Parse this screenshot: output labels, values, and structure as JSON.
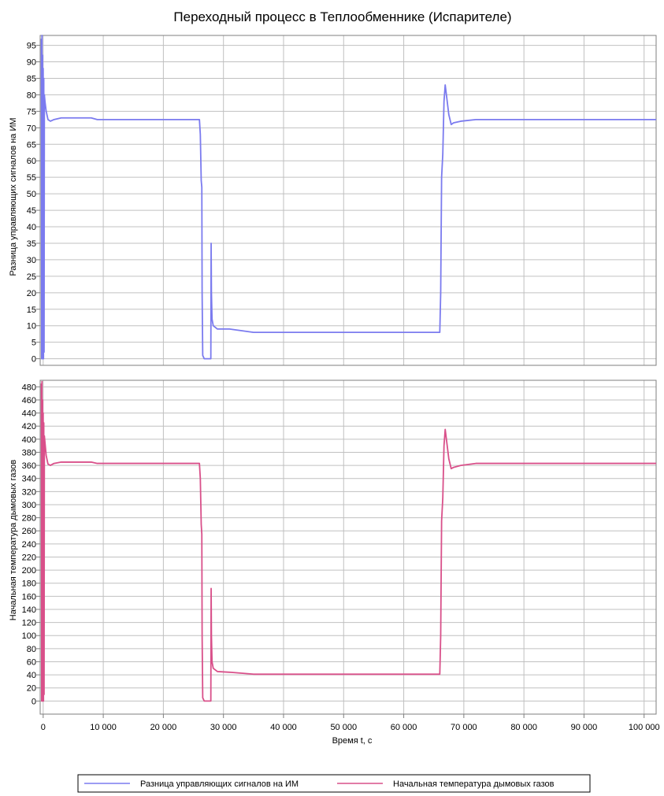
{
  "chart_data": {
    "type": "line",
    "title": "Переходный процесс в Теплообменнике (Испарителе)",
    "xlabel": "Время t, с",
    "xlim": [
      -500,
      102000
    ],
    "x_ticks": [
      0,
      10000,
      20000,
      30000,
      40000,
      50000,
      60000,
      70000,
      80000,
      90000,
      100000
    ],
    "x_tick_labels": [
      "0",
      "10 000",
      "20 000",
      "30 000",
      "40 000",
      "50 000",
      "60 000",
      "70 000",
      "80 000",
      "90 000",
      "100 000"
    ],
    "grid": true,
    "legend_position": "bottom",
    "panels": [
      {
        "ylabel": "Разница управляющих сигналов на ИМ",
        "ylim": [
          -2,
          98
        ],
        "y_ticks": [
          0,
          5,
          10,
          15,
          20,
          25,
          30,
          35,
          40,
          45,
          50,
          55,
          60,
          65,
          70,
          75,
          80,
          85,
          90,
          95
        ],
        "series": [
          {
            "name": "Разница управляющих сигналов на ИМ",
            "color": "#7b7bef",
            "points": [
              [
                -300,
                97
              ],
              [
                -250,
                0
              ],
              [
                -200,
                98
              ],
              [
                -150,
                0
              ],
              [
                -100,
                92
              ],
              [
                -50,
                0
              ],
              [
                0,
                88
              ],
              [
                50,
                0
              ],
              [
                100,
                85
              ],
              [
                150,
                2
              ],
              [
                200,
                80
              ],
              [
                300,
                78
              ],
              [
                500,
                75
              ],
              [
                800,
                72.5
              ],
              [
                1200,
                72
              ],
              [
                1800,
                72.5
              ],
              [
                3000,
                73
              ],
              [
                8000,
                73
              ],
              [
                9000,
                72.5
              ],
              [
                26000,
                72.5
              ],
              [
                26150,
                68
              ],
              [
                26300,
                54
              ],
              [
                26400,
                52
              ],
              [
                26450,
                20
              ],
              [
                26550,
                1
              ],
              [
                26800,
                0
              ],
              [
                27900,
                0
              ],
              [
                27950,
                35
              ],
              [
                28000,
                20
              ],
              [
                28100,
                12
              ],
              [
                28300,
                10
              ],
              [
                29000,
                9
              ],
              [
                31000,
                9
              ],
              [
                35000,
                8
              ],
              [
                66000,
                8
              ],
              [
                66150,
                20
              ],
              [
                66300,
                55
              ],
              [
                66500,
                62
              ],
              [
                66700,
                78
              ],
              [
                66900,
                83
              ],
              [
                67100,
                80
              ],
              [
                67500,
                74
              ],
              [
                67900,
                71
              ],
              [
                68300,
                71.5
              ],
              [
                69500,
                72
              ],
              [
                72000,
                72.5
              ],
              [
                102000,
                72.5
              ]
            ]
          }
        ]
      },
      {
        "ylabel": "Начальная температура дымовых газов",
        "ylim": [
          -20,
          490
        ],
        "y_ticks": [
          0,
          20,
          40,
          60,
          80,
          100,
          120,
          140,
          160,
          180,
          200,
          220,
          240,
          260,
          280,
          300,
          320,
          340,
          360,
          380,
          400,
          420,
          440,
          460,
          480
        ],
        "series": [
          {
            "name": "Начальная температура дымовых газов",
            "color": "#d9508a",
            "points": [
              [
                -300,
                485
              ],
              [
                -250,
                0
              ],
              [
                -200,
                488
              ],
              [
                -150,
                0
              ],
              [
                -100,
                460
              ],
              [
                -50,
                0
              ],
              [
                0,
                440
              ],
              [
                50,
                0
              ],
              [
                100,
                425
              ],
              [
                150,
                10
              ],
              [
                200,
                405
              ],
              [
                300,
                395
              ],
              [
                500,
                375
              ],
              [
                800,
                362
              ],
              [
                1200,
                360
              ],
              [
                1800,
                363
              ],
              [
                3000,
                365
              ],
              [
                8000,
                365
              ],
              [
                9000,
                363
              ],
              [
                26000,
                363
              ],
              [
                26150,
                340
              ],
              [
                26300,
                270
              ],
              [
                26400,
                255
              ],
              [
                26450,
                100
              ],
              [
                26550,
                5
              ],
              [
                26800,
                0
              ],
              [
                27900,
                0
              ],
              [
                27950,
                172
              ],
              [
                28000,
                100
              ],
              [
                28100,
                60
              ],
              [
                28300,
                50
              ],
              [
                29000,
                45
              ],
              [
                31000,
                44
              ],
              [
                35000,
                41
              ],
              [
                66000,
                41
              ],
              [
                66150,
                100
              ],
              [
                66300,
                275
              ],
              [
                66500,
                310
              ],
              [
                66700,
                390
              ],
              [
                66900,
                415
              ],
              [
                67100,
                400
              ],
              [
                67500,
                370
              ],
              [
                67900,
                355
              ],
              [
                68300,
                357
              ],
              [
                69500,
                360
              ],
              [
                72000,
                363
              ],
              [
                102000,
                363
              ]
            ]
          }
        ]
      }
    ]
  }
}
